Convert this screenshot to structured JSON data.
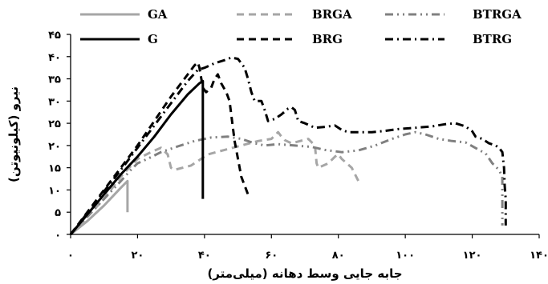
{
  "chart_data": {
    "type": "line",
    "xlabel": "جابه جایی وسط دهانه (میلی‌متر)",
    "ylabel": "نیرو (کیلونیوتن)",
    "xlim": [
      0,
      140
    ],
    "ylim": [
      0,
      45
    ],
    "x_ticks": [
      0,
      20,
      40,
      60,
      80,
      100,
      120,
      140
    ],
    "y_ticks": [
      0,
      5,
      10,
      15,
      20,
      25,
      30,
      35,
      40,
      45
    ],
    "x_tick_labels": [
      "۰",
      "۲۰",
      "۴۰",
      "۶۰",
      "۸۰",
      "۱۰۰",
      "۱۲۰",
      "۱۴۰"
    ],
    "y_tick_labels": [
      "۰",
      "۵",
      "۱۰",
      "۱۵",
      "۲۰",
      "۲۵",
      "۳۰",
      "۳۵",
      "۴۰",
      "۴۵"
    ],
    "grid": false,
    "legend_position": "top",
    "series": [
      {
        "name": "GA",
        "color": "#a6a6a6",
        "dash": "solid",
        "points": [
          [
            0,
            0
          ],
          [
            5,
            3
          ],
          [
            10,
            6.5
          ],
          [
            15,
            10.5
          ],
          [
            17,
            12
          ],
          [
            17,
            9
          ],
          [
            17,
            5
          ]
        ]
      },
      {
        "name": "BRGA",
        "color": "#a6a6a6",
        "dash": "dash",
        "points": [
          [
            0,
            0
          ],
          [
            5,
            4
          ],
          [
            10,
            8
          ],
          [
            15,
            13
          ],
          [
            20,
            17
          ],
          [
            24,
            18.5
          ],
          [
            27,
            19.5
          ],
          [
            29,
            18
          ],
          [
            30,
            15
          ],
          [
            31,
            14.5
          ],
          [
            36,
            15.5
          ],
          [
            41,
            18
          ],
          [
            46,
            19
          ],
          [
            51,
            20
          ],
          [
            56,
            21
          ],
          [
            60,
            21.5
          ],
          [
            62,
            23
          ],
          [
            63,
            22
          ],
          [
            64,
            21.2
          ],
          [
            66,
            20.5
          ],
          [
            71,
            21.5
          ],
          [
            73,
            20
          ],
          [
            73.5,
            16
          ],
          [
            74,
            15
          ],
          [
            77,
            16
          ],
          [
            79,
            17.5
          ],
          [
            80,
            18
          ],
          [
            81,
            17
          ],
          [
            84,
            15
          ],
          [
            86,
            12
          ]
        ]
      },
      {
        "name": "BTRGA",
        "color": "#808080",
        "dash": "dashdotdot",
        "points": [
          [
            0,
            0
          ],
          [
            5,
            4
          ],
          [
            10,
            8
          ],
          [
            15,
            12
          ],
          [
            18,
            14.5
          ],
          [
            20,
            16
          ],
          [
            23,
            17
          ],
          [
            27,
            18.5
          ],
          [
            32,
            19.8
          ],
          [
            37,
            21
          ],
          [
            42,
            21.8
          ],
          [
            47,
            22
          ],
          [
            51,
            21.5
          ],
          [
            55,
            20.5
          ],
          [
            58,
            20
          ],
          [
            62,
            20.3
          ],
          [
            67,
            20
          ],
          [
            72,
            19.7
          ],
          [
            76,
            19
          ],
          [
            81,
            18.5
          ],
          [
            86,
            18.9
          ],
          [
            91,
            20
          ],
          [
            96,
            21.5
          ],
          [
            100,
            22.5
          ],
          [
            103,
            23
          ],
          [
            106,
            22.5
          ],
          [
            110,
            21.5
          ],
          [
            114,
            21
          ],
          [
            118,
            20.7
          ],
          [
            122,
            19
          ],
          [
            124,
            18.2
          ],
          [
            126,
            16
          ],
          [
            128,
            14.5
          ],
          [
            129,
            13
          ],
          [
            129,
            10
          ],
          [
            129,
            5
          ],
          [
            129,
            2
          ]
        ]
      },
      {
        "name": "G",
        "color": "#000000",
        "dash": "solid",
        "points": [
          [
            0,
            0
          ],
          [
            5,
            4.5
          ],
          [
            10,
            9
          ],
          [
            15,
            13.5
          ],
          [
            20,
            17.5
          ],
          [
            25,
            22
          ],
          [
            30,
            27
          ],
          [
            35,
            31.5
          ],
          [
            38.5,
            34
          ],
          [
            39.5,
            34.5
          ],
          [
            39.5,
            31
          ],
          [
            39.5,
            20
          ],
          [
            39.5,
            8
          ]
        ]
      },
      {
        "name": "BRG",
        "color": "#000000",
        "dash": "dash",
        "points": [
          [
            0,
            0
          ],
          [
            5,
            5
          ],
          [
            10,
            10
          ],
          [
            15,
            15
          ],
          [
            20,
            20
          ],
          [
            25,
            25.5
          ],
          [
            30,
            31
          ],
          [
            35,
            36
          ],
          [
            37,
            38
          ],
          [
            38,
            38.7
          ],
          [
            38.5,
            37.5
          ],
          [
            39.5,
            33
          ],
          [
            40.5,
            32
          ],
          [
            42,
            33
          ],
          [
            43,
            35
          ],
          [
            44,
            36
          ],
          [
            45,
            34
          ],
          [
            46.5,
            32
          ],
          [
            47.5,
            30
          ],
          [
            48,
            27
          ],
          [
            48.5,
            24
          ],
          [
            49,
            21
          ],
          [
            50,
            17
          ],
          [
            51,
            13
          ],
          [
            53,
            9
          ]
        ]
      },
      {
        "name": "BTRG",
        "color": "#000000",
        "dash": "dashdot",
        "points": [
          [
            0,
            0
          ],
          [
            5,
            4.8
          ],
          [
            10,
            9.7
          ],
          [
            15,
            14.5
          ],
          [
            20,
            19.5
          ],
          [
            25,
            24.5
          ],
          [
            30,
            29.5
          ],
          [
            35,
            34.5
          ],
          [
            38,
            37
          ],
          [
            40,
            37.5
          ],
          [
            43,
            38.5
          ],
          [
            46,
            39.2
          ],
          [
            48,
            39.8
          ],
          [
            50,
            39.5
          ],
          [
            52,
            37.5
          ],
          [
            53,
            35
          ],
          [
            54,
            32
          ],
          [
            55,
            30
          ],
          [
            56,
            30
          ],
          [
            57,
            30
          ],
          [
            58,
            28
          ],
          [
            59,
            25.5
          ],
          [
            61,
            26
          ],
          [
            63,
            27
          ],
          [
            65,
            28.3
          ],
          [
            66,
            28.6
          ],
          [
            67,
            28
          ],
          [
            68,
            25.5
          ],
          [
            70,
            25
          ],
          [
            73,
            24
          ],
          [
            76,
            24.2
          ],
          [
            79,
            24.5
          ],
          [
            81,
            23.5
          ],
          [
            83,
            23
          ],
          [
            86,
            23
          ],
          [
            90,
            23
          ],
          [
            94,
            23.3
          ],
          [
            98,
            23.7
          ],
          [
            103,
            24
          ],
          [
            108,
            24.3
          ],
          [
            112,
            24.8
          ],
          [
            115,
            25
          ],
          [
            118,
            24.3
          ],
          [
            120,
            23.2
          ],
          [
            121,
            22
          ],
          [
            123,
            21.5
          ],
          [
            125,
            20.5
          ],
          [
            127,
            20
          ],
          [
            128,
            19.5
          ],
          [
            129,
            18.5
          ],
          [
            129.5,
            15
          ],
          [
            129.7,
            11
          ],
          [
            130,
            8
          ],
          [
            130,
            4
          ],
          [
            130,
            2
          ]
        ]
      }
    ]
  }
}
